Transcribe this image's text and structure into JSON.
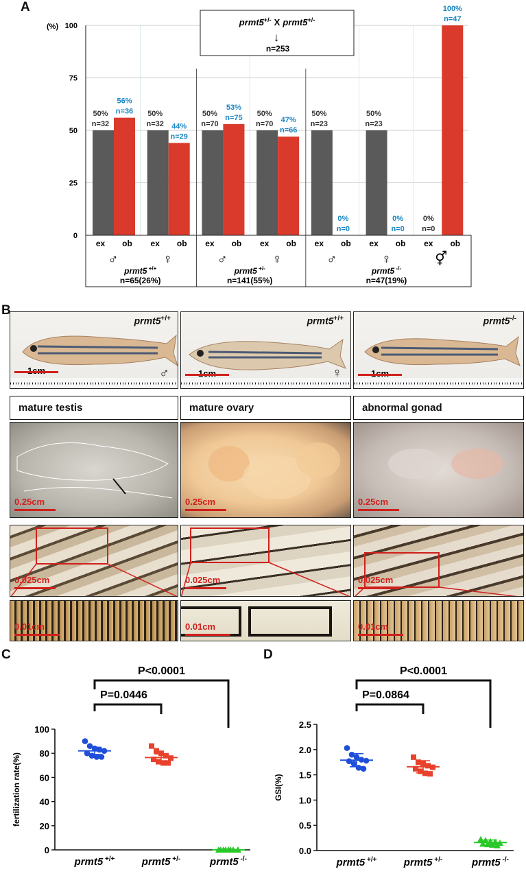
{
  "panel_letters": {
    "a": "A",
    "b": "B",
    "c": "C",
    "d": "D"
  },
  "panel_a": {
    "cross_title_left": "prmt5",
    "cross_title_left_sup": "+/-",
    "cross_x": "X",
    "cross_title_right": "prmt5",
    "cross_title_right_sup": "+/-",
    "cross_arrow": "↓",
    "cross_n": "n=253",
    "y_unit": "(%)",
    "y_ticks": [
      "0",
      "25",
      "50",
      "75",
      "100"
    ],
    "bar_labels": [
      "ex",
      "ob"
    ],
    "groups": [
      {
        "sex": "♂",
        "genotype": "prmt5",
        "genotype_sup": "+/+",
        "summary": "n=65(26%)",
        "ex": {
          "pct": "50%",
          "n": "n=32"
        },
        "ob": {
          "pct": "56%",
          "n": "n=36"
        }
      },
      {
        "sex": "♀",
        "ex": {
          "pct": "50%",
          "n": "n=32"
        },
        "ob": {
          "pct": "44%",
          "n": "n=29"
        }
      },
      {
        "sex": "♂",
        "genotype": "prmt5",
        "genotype_sup": "+/-",
        "summary": "n=141(55%)",
        "ex": {
          "pct": "50%",
          "n": "n=70"
        },
        "ob": {
          "pct": "53%",
          "n": "n=75"
        }
      },
      {
        "sex": "♀",
        "ex": {
          "pct": "50%",
          "n": "n=70"
        },
        "ob": {
          "pct": "47%",
          "n": "n=66"
        }
      },
      {
        "sex": "♂",
        "genotype": "prmt5",
        "genotype_sup": "-/-",
        "summary": "n=47(19%)",
        "ex": {
          "pct": "50%",
          "n": "n=23"
        },
        "ob": {
          "pct": "0%",
          "n": "n=0"
        }
      },
      {
        "sex": "♀",
        "ex": {
          "pct": "50%",
          "n": "n=23"
        },
        "ob": {
          "pct": "0%",
          "n": "n=0"
        }
      },
      {
        "sex": "⚥",
        "ex": {
          "pct": "0%",
          "n": "n=0"
        },
        "ob": {
          "pct": "100%",
          "n": "n=47"
        }
      }
    ]
  },
  "panel_b": {
    "fish": [
      {
        "genotype": "prmt5",
        "sup": "+/+",
        "sex": "♂",
        "scale": "1cm"
      },
      {
        "genotype": "prmt5",
        "sup": "+/+",
        "sex": "♀",
        "scale": "1cm"
      },
      {
        "genotype": "prmt5",
        "sup": "-/-",
        "sex": "",
        "scale": "1cm"
      }
    ],
    "gonad_labels": [
      "mature testis",
      "mature  ovary",
      "abnormal gonad"
    ],
    "gonad_scale": "0.25cm",
    "fin_scale": "0.025cm",
    "fin_zoom_scale": "0.01cm"
  },
  "chart_data": [
    {
      "type": "bar",
      "panel": "A",
      "categories": [
        "prmt5+/+ ♂",
        "prmt5+/+ ♀",
        "prmt5+/- ♂",
        "prmt5+/- ♀",
        "prmt5-/- ♂",
        "prmt5-/- ♀",
        "prmt5-/- ⚥"
      ],
      "series": [
        {
          "name": "ex",
          "values": [
            50,
            50,
            50,
            50,
            50,
            50,
            0
          ],
          "color": "#5a5a5a"
        },
        {
          "name": "ob",
          "values": [
            56,
            44,
            53,
            47,
            0,
            0,
            100
          ],
          "color": "#d93a2b"
        }
      ],
      "ylim": [
        0,
        100
      ],
      "ylabel": "(%)"
    },
    {
      "type": "scatter",
      "panel": "C",
      "ylabel": "fertilization rate(%)",
      "ylim": [
        0,
        100
      ],
      "yticks": [
        0,
        20,
        40,
        60,
        80,
        100
      ],
      "categories": [
        "prmt5 +/+",
        "prmt5 +/-",
        "prmt5 -/-"
      ],
      "series": [
        {
          "name": "prmt5 +/+",
          "color": "#1f4fd8",
          "marker": "circle",
          "mean": 82,
          "sd": 3,
          "values": [
            90,
            86,
            84,
            83,
            82,
            80,
            78,
            77,
            77
          ]
        },
        {
          "name": "prmt5 +/-",
          "color": "#e8412c",
          "marker": "square",
          "mean": 76.5,
          "sd": 3,
          "values": [
            86,
            82,
            80,
            78,
            76,
            75,
            73,
            72,
            72
          ]
        },
        {
          "name": "prmt5 -/-",
          "color": "#28c828",
          "marker": "triangle",
          "mean": 0,
          "sd": 0,
          "values": [
            0,
            0,
            0,
            0,
            0,
            0,
            0,
            0
          ]
        }
      ],
      "comparisons": [
        {
          "from": 0,
          "to": 1,
          "label": "P=0.0446"
        },
        {
          "from": 0,
          "to": 2,
          "label": "P<0.0001"
        }
      ]
    },
    {
      "type": "scatter",
      "panel": "D",
      "ylabel": "GSI(%)",
      "ylim": [
        0,
        2.5
      ],
      "yticks": [
        0.0,
        0.5,
        1.0,
        1.5,
        2.0,
        2.5
      ],
      "categories": [
        "prmt5 +/+",
        "prmt5 +/-",
        "prmt5 -/-"
      ],
      "series": [
        {
          "name": "prmt5 +/+",
          "color": "#1f4fd8",
          "marker": "circle",
          "mean": 1.79,
          "sd": 0.13,
          "values": [
            2.03,
            1.9,
            1.85,
            1.8,
            1.78,
            1.77,
            1.72,
            1.64,
            1.62
          ]
        },
        {
          "name": "prmt5 +/-",
          "color": "#e8412c",
          "marker": "square",
          "mean": 1.66,
          "sd": 0.12,
          "values": [
            1.85,
            1.75,
            1.72,
            1.68,
            1.65,
            1.62,
            1.57,
            1.53,
            1.52
          ]
        },
        {
          "name": "prmt5 -/-",
          "color": "#28c828",
          "marker": "triangle",
          "mean": 0.16,
          "sd": 0.05,
          "values": [
            0.22,
            0.2,
            0.18,
            0.17,
            0.15,
            0.13,
            0.12,
            0.11,
            0.1
          ]
        }
      ],
      "comparisons": [
        {
          "from": 0,
          "to": 1,
          "label": "P=0.0864"
        },
        {
          "from": 0,
          "to": 2,
          "label": "P<0.0001"
        }
      ]
    }
  ]
}
